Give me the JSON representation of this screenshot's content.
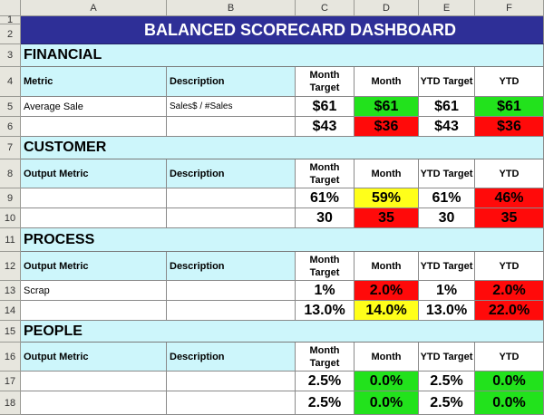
{
  "columns": [
    "A",
    "B",
    "C",
    "D",
    "E",
    "F"
  ],
  "rows": [
    "1",
    "2",
    "3",
    "4",
    "5",
    "6",
    "7",
    "8",
    "9",
    "10",
    "11",
    "12",
    "13",
    "14",
    "15",
    "16",
    "17",
    "18"
  ],
  "title": "BALANCED SCORECARD DASHBOARD",
  "labels": {
    "metric": "Metric",
    "output_metric": "Output Metric",
    "description": "Description",
    "month_target": "Month Target",
    "month": "Month",
    "ytd_target": "YTD Target",
    "ytd": "YTD"
  },
  "sections": [
    {
      "name": "FINANCIAL",
      "metric_label": "Metric",
      "rows": [
        {
          "metric": "Average Sale",
          "description": "Sales$ / #Sales",
          "month_target": "$61",
          "month": "$61",
          "month_status": "green",
          "ytd_target": "$61",
          "ytd": "$61",
          "ytd_status": "green"
        },
        {
          "metric": "",
          "description": "",
          "month_target": "$43",
          "month": "$36",
          "month_status": "red",
          "ytd_target": "$43",
          "ytd": "$36",
          "ytd_status": "red"
        }
      ]
    },
    {
      "name": "CUSTOMER",
      "metric_label": "Output Metric",
      "rows": [
        {
          "metric": "",
          "description": "",
          "month_target": "61%",
          "month": "59%",
          "month_status": "yellow",
          "ytd_target": "61%",
          "ytd": "46%",
          "ytd_status": "red"
        },
        {
          "metric": "",
          "description": "",
          "month_target": "30",
          "month": "35",
          "month_status": "red",
          "ytd_target": "30",
          "ytd": "35",
          "ytd_status": "red"
        }
      ]
    },
    {
      "name": "PROCESS",
      "metric_label": "Output Metric",
      "rows": [
        {
          "metric": "Scrap",
          "description": "",
          "month_target": "1%",
          "month": "2.0%",
          "month_status": "red",
          "ytd_target": "1%",
          "ytd": "2.0%",
          "ytd_status": "red"
        },
        {
          "metric": "",
          "description": "",
          "month_target": "13.0%",
          "month": "14.0%",
          "month_status": "yellow",
          "ytd_target": "13.0%",
          "ytd": "22.0%",
          "ytd_status": "red"
        }
      ]
    },
    {
      "name": "PEOPLE",
      "metric_label": "Output Metric",
      "rows": [
        {
          "metric": "",
          "description": "",
          "month_target": "2.5%",
          "month": "0.0%",
          "month_status": "green",
          "ytd_target": "2.5%",
          "ytd": "0.0%",
          "ytd_status": "green"
        },
        {
          "metric": "",
          "description": "",
          "month_target": "2.5%",
          "month": "0.0%",
          "month_status": "green",
          "ytd_target": "2.5%",
          "ytd": "0.0%",
          "ytd_status": "green"
        }
      ]
    }
  ],
  "colors": {
    "title_bg": "#2e2f97",
    "section_bg": "#cdf6fb",
    "green": "#22e21c",
    "red": "#ff0a0a",
    "yellow": "#ffff1a"
  }
}
